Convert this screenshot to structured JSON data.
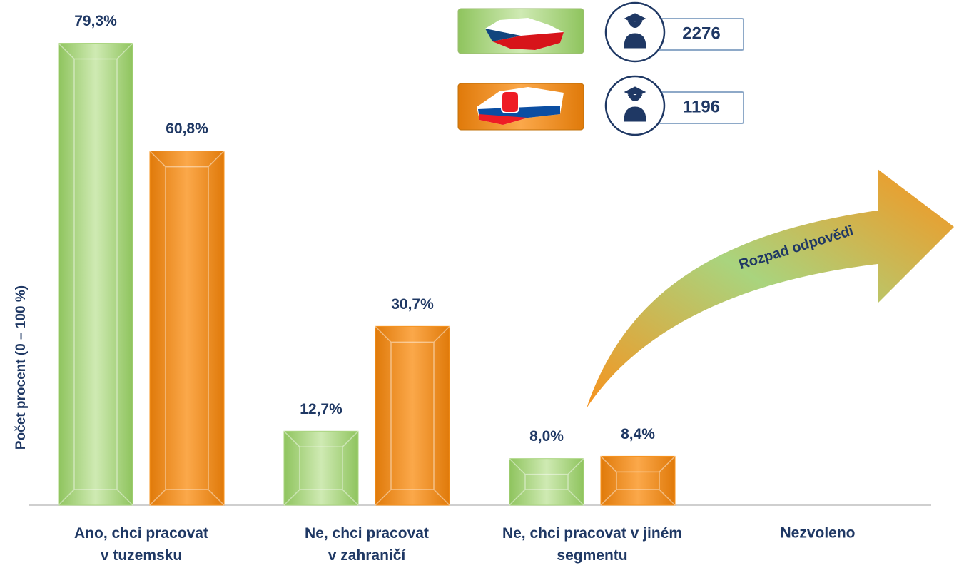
{
  "chart_data": {
    "type": "bar",
    "y_label": "Počet procent  (0 – 100 %)",
    "annotation": "Rozpad odpovědi",
    "categories": [
      "Ano, chci pracovat\nv tuzemsku",
      "Ne, chci pracovat\nv zahraničí",
      "Ne, chci pracovat v jiném\nsegmentu",
      "Nezvoleno"
    ],
    "series": [
      {
        "color": "#a9d47e",
        "count": 2276,
        "values": [
          79.3,
          12.7,
          8.0,
          null
        ],
        "value_labels": [
          "79,3%",
          "12,7%",
          "8,0%",
          null
        ]
      },
      {
        "color": "#f7931e",
        "count": 1196,
        "values": [
          60.8,
          30.7,
          8.4,
          null
        ],
        "value_labels": [
          "60,8%",
          "30,7%",
          "8,4%",
          null
        ]
      }
    ],
    "ylim": [
      0,
      85
    ]
  }
}
